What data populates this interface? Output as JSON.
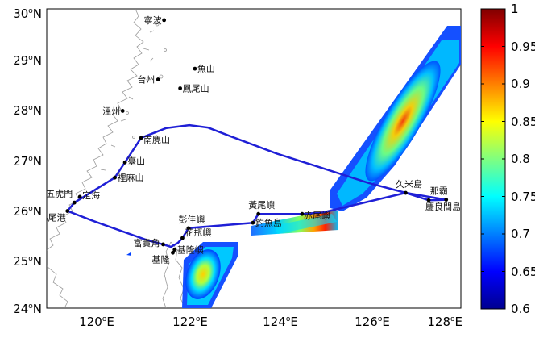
{
  "map": {
    "lat_ticks": [
      {
        "deg": "30",
        "hemi": "N"
      },
      {
        "deg": "29",
        "hemi": "N"
      },
      {
        "deg": "28",
        "hemi": "N"
      },
      {
        "deg": "27",
        "hemi": "N"
      },
      {
        "deg": "26",
        "hemi": "N"
      },
      {
        "deg": "25",
        "hemi": "N"
      },
      {
        "deg": "24",
        "hemi": "N"
      }
    ],
    "lon_ticks": [
      {
        "deg": "120",
        "hemi": "E"
      },
      {
        "deg": "122",
        "hemi": "E"
      },
      {
        "deg": "124",
        "hemi": "E"
      },
      {
        "deg": "126",
        "hemi": "E"
      },
      {
        "deg": "128",
        "hemi": "E"
      }
    ],
    "places": [
      {
        "name": "寧波",
        "lon": 121.55,
        "lat": 29.87
      },
      {
        "name": "魚山",
        "lon": 122.22,
        "lat": 28.88
      },
      {
        "name": "台州",
        "lon": 121.42,
        "lat": 28.66
      },
      {
        "name": "鳳尾山",
        "lon": 121.9,
        "lat": 28.48
      },
      {
        "name": "溫州",
        "lon": 120.65,
        "lat": 28.02
      },
      {
        "name": "南麂山",
        "lon": 121.05,
        "lat": 27.47
      },
      {
        "name": "臺山",
        "lon": 120.7,
        "lat": 26.97
      },
      {
        "name": "裡麻山",
        "lon": 120.48,
        "lat": 26.66
      },
      {
        "name": "定海",
        "lon": 119.72,
        "lat": 26.27
      },
      {
        "name": "五虎門",
        "lon": 119.6,
        "lat": 26.15
      },
      {
        "name": "馬尾港",
        "lon": 119.45,
        "lat": 25.98
      },
      {
        "name": "彭佳嶼",
        "lon": 122.08,
        "lat": 25.63
      },
      {
        "name": "富貴角",
        "lon": 121.53,
        "lat": 25.3
      },
      {
        "name": "花瓶嶼",
        "lon": 121.95,
        "lat": 25.43
      },
      {
        "name": "基隆嶼",
        "lon": 121.78,
        "lat": 25.19
      },
      {
        "name": "基隆",
        "lon": 121.74,
        "lat": 25.13
      },
      {
        "name": "黃尾嶼",
        "lon": 123.6,
        "lat": 25.92
      },
      {
        "name": "釣魚島",
        "lon": 123.48,
        "lat": 25.74
      },
      {
        "name": "赤尾嶼",
        "lon": 124.55,
        "lat": 25.92
      },
      {
        "name": "久米島",
        "lon": 126.8,
        "lat": 26.35
      },
      {
        "name": "那霸",
        "lon": 127.68,
        "lat": 26.21
      },
      {
        "name": "慶良間島",
        "lon": 127.3,
        "lat": 26.2
      }
    ],
    "route": [
      [
        119.45,
        25.98
      ],
      [
        119.6,
        26.15
      ],
      [
        120.48,
        26.66
      ],
      [
        120.7,
        26.97
      ],
      [
        121.05,
        27.47
      ],
      [
        121.6,
        27.67
      ],
      [
        122.1,
        27.73
      ],
      [
        122.5,
        27.68
      ],
      [
        123.0,
        27.5
      ],
      [
        124.0,
        27.15
      ],
      [
        125.0,
        26.85
      ],
      [
        126.0,
        26.55
      ],
      [
        126.8,
        26.35
      ],
      [
        127.3,
        26.2
      ],
      [
        127.68,
        26.21
      ],
      [
        126.8,
        26.35
      ],
      [
        125.0,
        25.95
      ],
      [
        124.55,
        25.92
      ],
      [
        123.6,
        25.92
      ],
      [
        123.48,
        25.74
      ],
      [
        122.08,
        25.63
      ],
      [
        121.95,
        25.43
      ],
      [
        121.85,
        25.33
      ],
      [
        121.7,
        25.25
      ],
      [
        121.53,
        25.3
      ],
      [
        121.2,
        25.38
      ],
      [
        120.0,
        25.78
      ],
      [
        119.45,
        25.98
      ]
    ],
    "colors": {
      "route": "#1f1fd6",
      "coast": "#9a9a9a"
    }
  },
  "colorbar": {
    "ticks": [
      "1",
      "0.95",
      "0.9",
      "0.85",
      "0.8",
      "0.75",
      "0.7",
      "0.65",
      "0.6"
    ],
    "min": 0.6,
    "max": 1.0
  }
}
